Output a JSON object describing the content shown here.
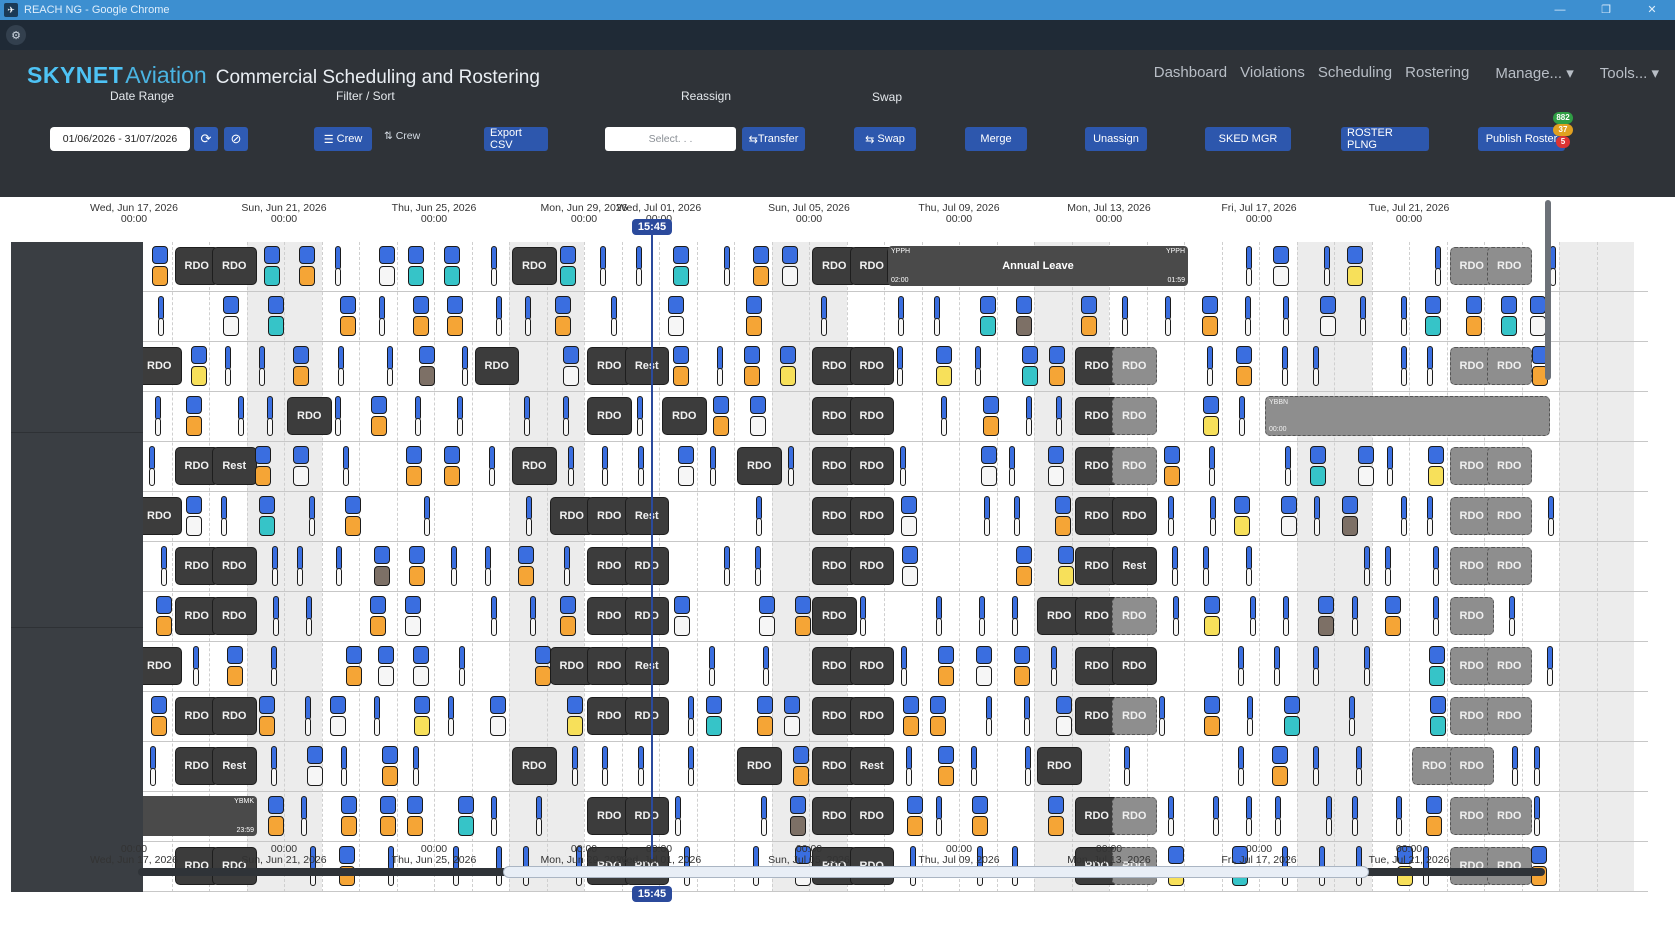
{
  "window": {
    "title": "REACH NG - Google Chrome"
  },
  "brand": {
    "name": "SKYNET",
    "suffix": "Aviation",
    "subtitle": "Commercial Scheduling and Rostering"
  },
  "nav": [
    "Dashboard",
    "Violations",
    "Scheduling",
    "Rostering",
    "Manage...",
    "Tools..."
  ],
  "toolbar": {
    "date_range_label": "Date Range",
    "date_range_value": "01/06/2026 - 31/07/2026",
    "filter_label": "Filter / Sort",
    "filter_crew": "Crew",
    "sort_crew": "Crew",
    "export_csv": "Export CSV",
    "reassign_label": "Reassign",
    "select_placeholder": "Select. . .",
    "transfer": "Transfer",
    "swap_label": "Swap",
    "swap": "Swap",
    "merge": "Merge",
    "unassign": "Unassign",
    "sked_mgr": "SKED MGR",
    "roster_plng": "ROSTER PLNG",
    "publish": "Publish Roster",
    "badges": [
      "882",
      "37",
      "5"
    ]
  },
  "timeline": {
    "now_label": "15:45",
    "ticks": [
      {
        "date": "Wed, Jun 17, 2026",
        "time": "00:00"
      },
      {
        "date": "Sun, Jun 21, 2026",
        "time": "00:00"
      },
      {
        "date": "Thu, Jun 25, 2026",
        "time": "00:00"
      },
      {
        "date": "Mon, Jun 29, 2026",
        "time": "00:00"
      },
      {
        "date": "Wed, Jul 01, 2026",
        "time": "00:00"
      },
      {
        "date": "Sun, Jul 05, 2026",
        "time": "00:00"
      },
      {
        "date": "Thu, Jul 09, 2026",
        "time": "00:00"
      },
      {
        "date": "Mon, Jul 13, 2026",
        "time": "00:00"
      },
      {
        "date": "Fri, Jul 17, 2026",
        "time": "00:00"
      },
      {
        "date": "Tue, Jul 21, 2026",
        "time": "00:00"
      }
    ]
  },
  "leave": {
    "label": "Annual Leave",
    "from_code": "YPPH",
    "to_code": "YPPH",
    "start": "02:00",
    "end": "01:59"
  },
  "block_row12": {
    "code": "YBMK",
    "time": "23:59"
  },
  "block_row4": {
    "code": "YBBN",
    "time": "00:00"
  },
  "rows": [
    [
      {
        "t": "RDO",
        "d": 16,
        "l": 0
      },
      {
        "t": "RDO",
        "d": 17,
        "l": 0
      },
      {
        "t": "RDO",
        "d": 25,
        "l": 0
      },
      {
        "t": "RDO",
        "d": 33,
        "l": 0
      },
      {
        "t": "RDO",
        "d": 34,
        "l": 0
      },
      {
        "t": "Rest",
        "d": 35,
        "l": 0
      },
      {
        "t": "RDO",
        "d": 50,
        "l": 1
      },
      {
        "t": "RDO",
        "d": 51,
        "l": 1
      }
    ],
    [],
    [
      {
        "t": "RDO",
        "d": 15,
        "l": 0
      },
      {
        "t": "RDO",
        "d": 24,
        "l": 0
      },
      {
        "t": "RDO",
        "d": 27,
        "l": 0
      },
      {
        "t": "Rest",
        "d": 28,
        "l": 0
      },
      {
        "t": "RDO",
        "d": 33,
        "l": 0
      },
      {
        "t": "RDO",
        "d": 34,
        "l": 0
      },
      {
        "t": "RDO",
        "d": 40,
        "l": 0
      },
      {
        "t": "RDO",
        "d": 41,
        "l": 1
      },
      {
        "t": "RDO",
        "d": 50,
        "l": 1
      },
      {
        "t": "RDO",
        "d": 51,
        "l": 1
      }
    ],
    [
      {
        "t": "RDO",
        "d": 19,
        "l": 0
      },
      {
        "t": "RDO",
        "d": 27,
        "l": 0
      },
      {
        "t": "RDO",
        "d": 29,
        "l": 0
      },
      {
        "t": "RDO",
        "d": 33,
        "l": 0
      },
      {
        "t": "RDO",
        "d": 34,
        "l": 0
      },
      {
        "t": "RDO",
        "d": 40,
        "l": 0
      },
      {
        "t": "RDO",
        "d": 41,
        "l": 1
      }
    ],
    [
      {
        "t": "RDO",
        "d": 16,
        "l": 0
      },
      {
        "t": "Rest",
        "d": 17,
        "l": 0
      },
      {
        "t": "RDO",
        "d": 25,
        "l": 0
      },
      {
        "t": "RDO",
        "d": 31,
        "l": 0
      },
      {
        "t": "RDO",
        "d": 33,
        "l": 0
      },
      {
        "t": "RDO",
        "d": 34,
        "l": 0
      },
      {
        "t": "RDO",
        "d": 40,
        "l": 0
      },
      {
        "t": "RDO",
        "d": 41,
        "l": 1
      },
      {
        "t": "RDO",
        "d": 50,
        "l": 1
      },
      {
        "t": "RDO",
        "d": 51,
        "l": 1
      }
    ],
    [
      {
        "t": "RDO",
        "d": 15,
        "l": 0
      },
      {
        "t": "RDO",
        "d": 26,
        "l": 0
      },
      {
        "t": "RDO",
        "d": 27,
        "l": 0
      },
      {
        "t": "Rest",
        "d": 28,
        "l": 0
      },
      {
        "t": "RDO",
        "d": 33,
        "l": 0
      },
      {
        "t": "RDO",
        "d": 34,
        "l": 0
      },
      {
        "t": "RDO",
        "d": 40,
        "l": 0
      },
      {
        "t": "RDO",
        "d": 41,
        "l": 0
      },
      {
        "t": "RDO",
        "d": 50,
        "l": 1
      },
      {
        "t": "RDO",
        "d": 51,
        "l": 1
      }
    ],
    [
      {
        "t": "RDO",
        "d": 16,
        "l": 0
      },
      {
        "t": "RDO",
        "d": 17,
        "l": 0
      },
      {
        "t": "RDO",
        "d": 27,
        "l": 0
      },
      {
        "t": "RDO",
        "d": 28,
        "l": 0
      },
      {
        "t": "RDO",
        "d": 33,
        "l": 0
      },
      {
        "t": "RDO",
        "d": 34,
        "l": 0
      },
      {
        "t": "RDO",
        "d": 40,
        "l": 0
      },
      {
        "t": "Rest",
        "d": 41,
        "l": 0
      },
      {
        "t": "RDO",
        "d": 50,
        "l": 1
      },
      {
        "t": "RDO",
        "d": 51,
        "l": 1
      }
    ],
    [
      {
        "t": "RDO",
        "d": 16,
        "l": 0
      },
      {
        "t": "RDO",
        "d": 17,
        "l": 0
      },
      {
        "t": "RDO",
        "d": 27,
        "l": 0
      },
      {
        "t": "RDO",
        "d": 28,
        "l": 0
      },
      {
        "t": "RDO",
        "d": 33,
        "l": 0
      },
      {
        "t": "RDO",
        "d": 39,
        "l": 0
      },
      {
        "t": "RDO",
        "d": 40,
        "l": 0
      },
      {
        "t": "RDO",
        "d": 41,
        "l": 1
      },
      {
        "t": "RDO",
        "d": 50,
        "l": 1
      }
    ],
    [
      {
        "t": "RDO",
        "d": 15,
        "l": 0
      },
      {
        "t": "RDO",
        "d": 26,
        "l": 0
      },
      {
        "t": "RDO",
        "d": 27,
        "l": 0
      },
      {
        "t": "Rest",
        "d": 28,
        "l": 0
      },
      {
        "t": "RDO",
        "d": 33,
        "l": 0
      },
      {
        "t": "RDO",
        "d": 34,
        "l": 0
      },
      {
        "t": "RDO",
        "d": 40,
        "l": 0
      },
      {
        "t": "RDO",
        "d": 41,
        "l": 0
      },
      {
        "t": "RDO",
        "d": 50,
        "l": 1
      },
      {
        "t": "RDO",
        "d": 51,
        "l": 1
      }
    ],
    [
      {
        "t": "RDO",
        "d": 16,
        "l": 0
      },
      {
        "t": "RDO",
        "d": 17,
        "l": 0
      },
      {
        "t": "RDO",
        "d": 27,
        "l": 0
      },
      {
        "t": "RDO",
        "d": 28,
        "l": 0
      },
      {
        "t": "RDO",
        "d": 33,
        "l": 0
      },
      {
        "t": "RDO",
        "d": 34,
        "l": 0
      },
      {
        "t": "RDO",
        "d": 40,
        "l": 0
      },
      {
        "t": "RDO",
        "d": 41,
        "l": 1
      },
      {
        "t": "RDO",
        "d": 50,
        "l": 1
      },
      {
        "t": "RDO",
        "d": 51,
        "l": 1
      }
    ],
    [
      {
        "t": "RDO",
        "d": 16,
        "l": 0
      },
      {
        "t": "Rest",
        "d": 17,
        "l": 0
      },
      {
        "t": "RDO",
        "d": 25,
        "l": 0
      },
      {
        "t": "RDO",
        "d": 31,
        "l": 0
      },
      {
        "t": "RDO",
        "d": 33,
        "l": 0
      },
      {
        "t": "Rest",
        "d": 34,
        "l": 0
      },
      {
        "t": "RDO",
        "d": 39,
        "l": 0
      },
      {
        "t": "RDO",
        "d": 49,
        "l": 1
      },
      {
        "t": "RDO",
        "d": 50,
        "l": 1
      }
    ],
    [
      {
        "t": "RDO",
        "d": 16,
        "l": 0
      },
      {
        "t": "RDO",
        "d": 17,
        "l": 0
      },
      {
        "t": "RDO",
        "d": 27,
        "l": 0
      },
      {
        "t": "RDO",
        "d": 28,
        "l": 0
      },
      {
        "t": "RDO",
        "d": 33,
        "l": 0
      },
      {
        "t": "RDO",
        "d": 34,
        "l": 0
      },
      {
        "t": "RDO",
        "d": 40,
        "l": 0
      },
      {
        "t": "RDO",
        "d": 41,
        "l": 1
      },
      {
        "t": "RDO",
        "d": 50,
        "l": 1
      },
      {
        "t": "RDO",
        "d": 51,
        "l": 1
      }
    ],
    [
      {
        "t": "RDO",
        "d": 16,
        "l": 0
      },
      {
        "t": "RDO",
        "d": 17,
        "l": 0
      },
      {
        "t": "RDO",
        "d": 27,
        "l": 0
      },
      {
        "t": "RDO",
        "d": 28,
        "l": 0
      },
      {
        "t": "RDO",
        "d": 33,
        "l": 0
      },
      {
        "t": "RDO",
        "d": 34,
        "l": 0
      },
      {
        "t": "RDO",
        "d": 40,
        "l": 0
      },
      {
        "t": "RDO",
        "d": 41,
        "l": 1
      },
      {
        "t": "RDO",
        "d": 50,
        "l": 1
      },
      {
        "t": "RDO",
        "d": 51,
        "l": 1
      }
    ]
  ],
  "colors": {
    "accent": "#4ec3f5",
    "button": "#2d57ad",
    "now": "#2b4a9c",
    "duty_blue": "#3a6ee0",
    "duty_orange": "#f5a536"
  }
}
